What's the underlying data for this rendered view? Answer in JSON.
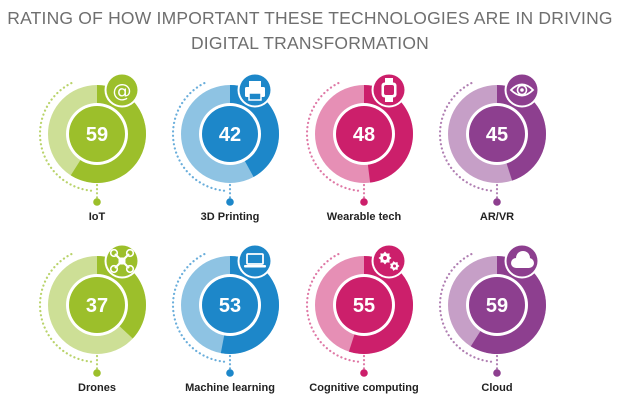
{
  "header": {
    "title_line1": "RATING OF HOW IMPORTANT THESE TECHNOLOGIES ARE IN DRIVING",
    "title_line2": "DIGITAL TRANSFORMATION"
  },
  "colors": {
    "green": "#9cbf2b",
    "green_light": "#cddf96",
    "blue": "#1d87c9",
    "blue_light": "#8ec3e3",
    "pink": "#cc1f6b",
    "pink_light": "#e68fb5",
    "purple": "#8d3f8f",
    "purple_light": "#c69fc7",
    "dots_green": "#b9d36b",
    "dots_blue": "#6aaedb",
    "dots_pink": "#df79a6",
    "dots_purple": "#b07fb2"
  },
  "chart_data": {
    "type": "donut-grid",
    "title": "RATING OF HOW IMPORTANT THESE TECHNOLOGIES ARE IN DRIVING DIGITAL TRANSFORMATION",
    "scale_max": 100,
    "categories": [
      "IoT",
      "3D Printing",
      "Wearable tech",
      "AR/VR",
      "Drones",
      "Machine learning",
      "Cognitive computing",
      "Cloud"
    ],
    "values": [
      59,
      42,
      48,
      45,
      37,
      53,
      55,
      59
    ],
    "items": [
      {
        "label": "IoT",
        "value": 59,
        "color": "green",
        "icon": "at-sign-icon"
      },
      {
        "label": "3D Printing",
        "value": 42,
        "color": "blue",
        "icon": "printer-icon"
      },
      {
        "label": "Wearable tech",
        "value": 48,
        "color": "pink",
        "icon": "smartwatch-icon"
      },
      {
        "label": "AR/VR",
        "value": 45,
        "color": "purple",
        "icon": "eye-icon"
      },
      {
        "label": "Drones",
        "value": 37,
        "color": "green",
        "icon": "drone-icon"
      },
      {
        "label": "Machine learning",
        "value": 53,
        "color": "blue",
        "icon": "laptop-icon"
      },
      {
        "label": "Cognitive computing",
        "value": 55,
        "color": "pink",
        "icon": "gears-icon"
      },
      {
        "label": "Cloud",
        "value": 59,
        "color": "purple",
        "icon": "cloud-icon"
      }
    ]
  }
}
